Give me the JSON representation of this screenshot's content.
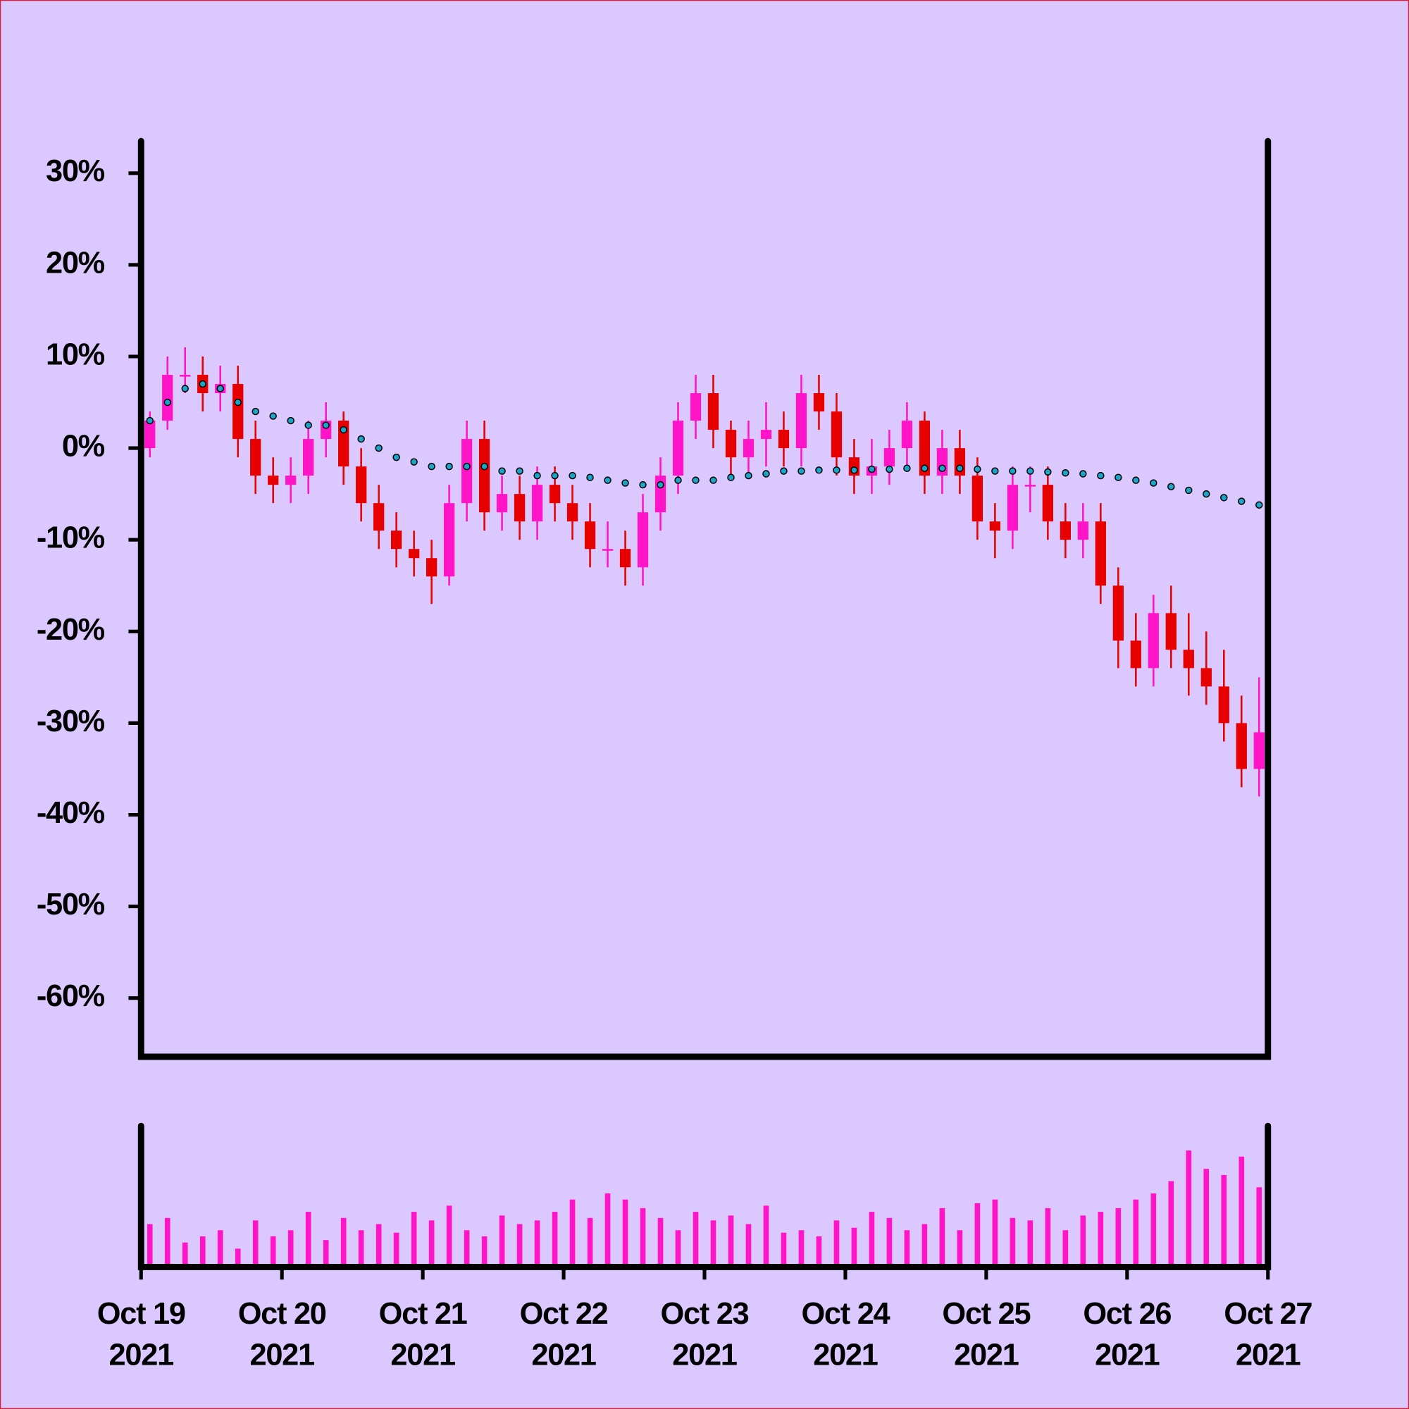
{
  "chart_data": {
    "type": "candlestick",
    "xlim": [
      "2021-10-19T00:00",
      "2021-10-27T00:00"
    ],
    "xticks": [
      {
        "value": "2021-10-19",
        "label": [
          "Oct 19",
          "2021"
        ]
      },
      {
        "value": "2021-10-20",
        "label": [
          "Oct 20",
          "2021"
        ]
      },
      {
        "value": "2021-10-21",
        "label": [
          "Oct 21",
          "2021"
        ]
      },
      {
        "value": "2021-10-22",
        "label": [
          "Oct 22",
          "2021"
        ]
      },
      {
        "value": "2021-10-23",
        "label": [
          "Oct 23",
          "2021"
        ]
      },
      {
        "value": "2021-10-24",
        "label": [
          "Oct 24",
          "2021"
        ]
      },
      {
        "value": "2021-10-25",
        "label": [
          "Oct 25",
          "2021"
        ]
      },
      {
        "value": "2021-10-26",
        "label": [
          "Oct 26",
          "2021"
        ]
      },
      {
        "value": "2021-10-27",
        "label": [
          "Oct 27",
          "2021"
        ]
      }
    ],
    "ylim": [
      -66.4,
      33.5
    ],
    "yticks": [
      {
        "value": 30,
        "label": "30%"
      },
      {
        "value": 20,
        "label": "20%"
      },
      {
        "value": 10,
        "label": "10%"
      },
      {
        "value": 0,
        "label": "0%"
      },
      {
        "value": -10,
        "label": "-10%"
      },
      {
        "value": -20,
        "label": "-20%"
      },
      {
        "value": -30,
        "label": "-30%"
      },
      {
        "value": -40,
        "label": "-40%"
      },
      {
        "value": -50,
        "label": "-50%"
      },
      {
        "value": -60,
        "label": "-60%"
      }
    ],
    "up_color": "#ff14c8",
    "down_color": "#e60000",
    "x": [
      "2021-10-19T00:00",
      "2021-10-19T03:00",
      "2021-10-19T06:00",
      "2021-10-19T09:00",
      "2021-10-19T12:00",
      "2021-10-19T15:00",
      "2021-10-19T18:00",
      "2021-10-19T21:00",
      "2021-10-20T00:00",
      "2021-10-20T03:00",
      "2021-10-20T06:00",
      "2021-10-20T09:00",
      "2021-10-20T12:00",
      "2021-10-20T15:00",
      "2021-10-20T18:00",
      "2021-10-20T21:00",
      "2021-10-21T00:00",
      "2021-10-21T03:00",
      "2021-10-21T06:00",
      "2021-10-21T09:00",
      "2021-10-21T12:00",
      "2021-10-21T15:00",
      "2021-10-21T18:00",
      "2021-10-21T21:00",
      "2021-10-22T00:00",
      "2021-10-22T03:00",
      "2021-10-22T06:00",
      "2021-10-22T09:00",
      "2021-10-22T12:00",
      "2021-10-22T15:00",
      "2021-10-22T18:00",
      "2021-10-22T21:00",
      "2021-10-23T00:00",
      "2021-10-23T03:00",
      "2021-10-23T06:00",
      "2021-10-23T09:00",
      "2021-10-23T12:00",
      "2021-10-23T15:00",
      "2021-10-23T18:00",
      "2021-10-23T21:00",
      "2021-10-24T00:00",
      "2021-10-24T03:00",
      "2021-10-24T06:00",
      "2021-10-24T09:00",
      "2021-10-24T12:00",
      "2021-10-24T15:00",
      "2021-10-24T18:00",
      "2021-10-24T21:00",
      "2021-10-25T00:00",
      "2021-10-25T03:00",
      "2021-10-25T06:00",
      "2021-10-25T09:00",
      "2021-10-25T12:00",
      "2021-10-25T15:00",
      "2021-10-25T18:00",
      "2021-10-25T21:00",
      "2021-10-26T00:00",
      "2021-10-26T03:00",
      "2021-10-26T06:00",
      "2021-10-26T09:00",
      "2021-10-26T12:00",
      "2021-10-26T15:00",
      "2021-10-26T18:00",
      "2021-10-26T21:00"
    ],
    "open": [
      0,
      3,
      8,
      8,
      6,
      7,
      1,
      -3,
      -4,
      -3,
      1,
      3,
      -2,
      -6,
      -9,
      -11,
      -12,
      -14,
      -6,
      1,
      -7,
      -5,
      -8,
      -4,
      -6,
      -8,
      -11,
      -11,
      -13,
      -7,
      -3,
      3,
      6,
      2,
      -1,
      1,
      2,
      0,
      6,
      4,
      -1,
      -3,
      -2,
      0,
      3,
      -3,
      0,
      -3,
      -8,
      -9,
      -4,
      -4,
      -8,
      -10,
      -8,
      -15,
      -21,
      -24,
      -18,
      -22,
      -24,
      -26,
      -30,
      -35
    ],
    "high": [
      4,
      10,
      11,
      10,
      9,
      9,
      3,
      -1,
      -1,
      3,
      5,
      4,
      0,
      -4,
      -7,
      -9,
      -10,
      -4,
      3,
      3,
      -3,
      -3,
      -2,
      -2,
      -4,
      -6,
      -8,
      -9,
      -5,
      -1,
      5,
      8,
      8,
      3,
      3,
      5,
      4,
      8,
      8,
      6,
      1,
      1,
      2,
      5,
      4,
      2,
      2,
      -1,
      -6,
      -2,
      -2,
      -2,
      -6,
      -6,
      -6,
      -13,
      -18,
      -16,
      -15,
      -18,
      -20,
      -22,
      -27,
      -25
    ],
    "low": [
      -1,
      2,
      6,
      4,
      4,
      -1,
      -5,
      -6,
      -6,
      -5,
      -1,
      -4,
      -8,
      -11,
      -13,
      -14,
      -17,
      -15,
      -8,
      -9,
      -9,
      -10,
      -10,
      -8,
      -10,
      -13,
      -13,
      -15,
      -15,
      -9,
      -5,
      1,
      0,
      -3,
      -3,
      -2,
      -2,
      -2,
      2,
      -3,
      -5,
      -5,
      -4,
      -2,
      -5,
      -5,
      -5,
      -10,
      -12,
      -11,
      -7,
      -10,
      -12,
      -12,
      -17,
      -24,
      -26,
      -26,
      -24,
      -27,
      -28,
      -32,
      -37,
      -38
    ],
    "close": [
      3,
      8,
      8,
      6,
      7,
      1,
      -3,
      -4,
      -3,
      1,
      3,
      -2,
      -6,
      -9,
      -11,
      -12,
      -14,
      -6,
      1,
      -7,
      -5,
      -8,
      -4,
      -6,
      -8,
      -11,
      -11,
      -13,
      -7,
      -3,
      3,
      6,
      2,
      -1,
      1,
      2,
      0,
      6,
      4,
      -1,
      -3,
      -2,
      0,
      3,
      -3,
      0,
      -3,
      -8,
      -9,
      -4,
      -4,
      -8,
      -10,
      -8,
      -15,
      -21,
      -24,
      -18,
      -22,
      -24,
      -26,
      -30,
      -35,
      -31
    ],
    "moving_average": {
      "color": "#1aa6c8",
      "values": [
        3,
        5,
        6.5,
        7,
        6.5,
        5,
        4,
        3.5,
        3,
        2.5,
        2.5,
        2,
        1,
        0,
        -1,
        -1.5,
        -2,
        -2,
        -2,
        -2,
        -2.5,
        -2.5,
        -3,
        -3,
        -3,
        -3.2,
        -3.5,
        -3.8,
        -4,
        -4,
        -3.5,
        -3.5,
        -3.5,
        -3.2,
        -3,
        -2.8,
        -2.5,
        -2.5,
        -2.4,
        -2.4,
        -2.4,
        -2.3,
        -2.3,
        -2.2,
        -2.2,
        -2.2,
        -2.2,
        -2.3,
        -2.5,
        -2.5,
        -2.5,
        -2.6,
        -2.7,
        -2.8,
        -3,
        -3.2,
        -3.5,
        -3.8,
        -4.2,
        -4.6,
        -5,
        -5.4,
        -5.8,
        -6.2
      ]
    },
    "volume": {
      "color": "#ff14c8",
      "ylim": [
        0,
        115
      ],
      "values": [
        35,
        40,
        20,
        25,
        30,
        15,
        38,
        25,
        30,
        45,
        22,
        40,
        30,
        35,
        28,
        45,
        38,
        50,
        30,
        25,
        42,
        35,
        38,
        45,
        55,
        40,
        60,
        55,
        48,
        40,
        30,
        45,
        38,
        42,
        35,
        50,
        28,
        30,
        25,
        38,
        32,
        45,
        40,
        30,
        35,
        48,
        30,
        52,
        55,
        40,
        38,
        48,
        30,
        42,
        45,
        48,
        55,
        60,
        70,
        95,
        80,
        75,
        90,
        65
      ]
    }
  }
}
